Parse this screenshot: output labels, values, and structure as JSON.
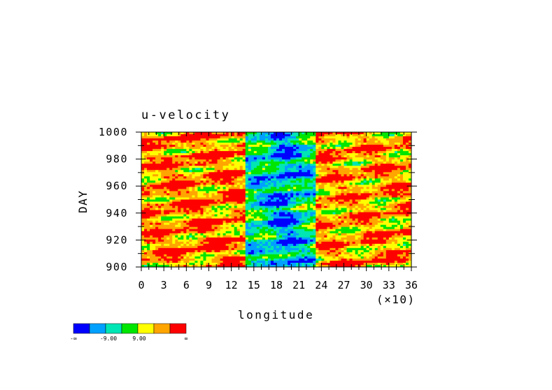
{
  "chart_data": {
    "type": "heatmap",
    "title": "u-velocity",
    "xlabel": "longitude",
    "ylabel": "DAY",
    "x_scale_note": "(×10)",
    "x_ticks": [
      "0",
      "3",
      "6",
      "9",
      "12",
      "15",
      "18",
      "21",
      "24",
      "27",
      "30",
      "33",
      "36"
    ],
    "y_ticks": [
      "900",
      "920",
      "940",
      "960",
      "980",
      "1000"
    ],
    "xlim": [
      0,
      36
    ],
    "ylim": [
      900,
      1000
    ],
    "colorbar": {
      "colors": [
        "#0000ff",
        "#00a0ff",
        "#00e6b4",
        "#00e600",
        "#ffff00",
        "#ffa500",
        "#ff0000"
      ],
      "tick_labels": [
        "-∞",
        "-9.00",
        "9.00",
        "∞"
      ]
    },
    "regions": [
      {
        "band": "west",
        "x_range": [
          0,
          14
        ],
        "dominant": [
          "#ff0000",
          "#ffa500",
          "#ffff00",
          "#00e600"
        ]
      },
      {
        "band": "center",
        "x_range": [
          14,
          24
        ],
        "dominant": [
          "#00e600",
          "#00e6b4",
          "#00a0ff",
          "#0000ff"
        ]
      },
      {
        "band": "east",
        "x_range": [
          24,
          36
        ],
        "dominant": [
          "#ffff00",
          "#ffa500",
          "#ff0000",
          "#00e600"
        ]
      }
    ]
  }
}
